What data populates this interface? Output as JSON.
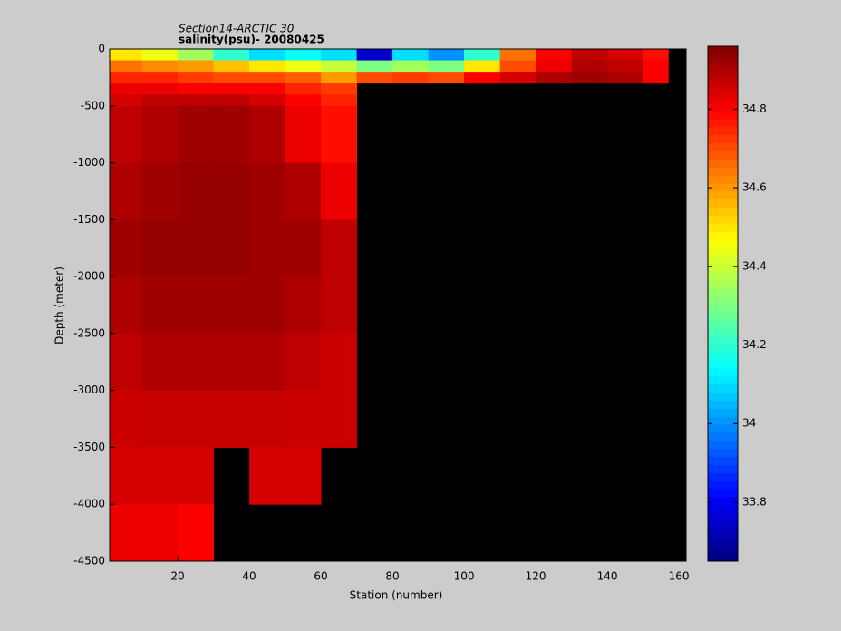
{
  "chart_data": {
    "type": "heatmap",
    "title": "Section14-ARCTIC 30",
    "subtitle": "salinity(psu)- 20080425",
    "x_label": "Station (number)",
    "y_label": "Depth (meter)",
    "xlim": [
      1,
      162
    ],
    "ylim": [
      -4500,
      0
    ],
    "xticks": [
      20,
      40,
      60,
      80,
      100,
      120,
      140,
      160
    ],
    "yticks": [
      -4500,
      -4000,
      -3500,
      -3000,
      -2500,
      -2000,
      -1500,
      -1000,
      -500,
      0
    ],
    "xbins": [
      1,
      10,
      20,
      30,
      40,
      50,
      60,
      70,
      80,
      90,
      100,
      110,
      120,
      130,
      140,
      150,
      157
    ],
    "ybins": [
      0,
      -100,
      -200,
      -300,
      -400,
      -500,
      -1000,
      -1500,
      -2000,
      -2500,
      -3000,
      -3500,
      -4000,
      -4500
    ],
    "values": [
      [
        34.5,
        34.45,
        34.35,
        34.2,
        34.1,
        34.15,
        34.1,
        33.75,
        34.1,
        34.0,
        34.2,
        34.65,
        34.8,
        34.88,
        34.85,
        34.78
      ],
      [
        34.65,
        34.62,
        34.6,
        34.55,
        34.5,
        34.45,
        34.4,
        34.3,
        34.35,
        34.3,
        34.5,
        34.7,
        34.82,
        34.9,
        34.88,
        34.8
      ],
      [
        34.75,
        34.75,
        34.72,
        34.7,
        34.7,
        34.68,
        34.6,
        34.7,
        34.72,
        34.7,
        34.8,
        34.85,
        34.9,
        34.92,
        34.9,
        34.8
      ],
      [
        34.82,
        34.82,
        34.8,
        34.8,
        34.8,
        34.75,
        34.72,
        null,
        null,
        null,
        null,
        null,
        null,
        null,
        null,
        null
      ],
      [
        34.85,
        34.88,
        34.88,
        34.88,
        34.85,
        34.8,
        34.75,
        null,
        null,
        null,
        null,
        null,
        null,
        null,
        null,
        null
      ],
      [
        34.88,
        34.9,
        34.92,
        34.92,
        34.9,
        34.82,
        34.78,
        null,
        null,
        null,
        null,
        null,
        null,
        null,
        null,
        null
      ],
      [
        34.9,
        34.92,
        34.93,
        34.93,
        34.92,
        34.9,
        34.82,
        null,
        null,
        null,
        null,
        null,
        null,
        null,
        null,
        null
      ],
      [
        34.92,
        34.93,
        34.93,
        34.93,
        34.92,
        34.92,
        34.88,
        null,
        null,
        null,
        null,
        null,
        null,
        null,
        null,
        null
      ],
      [
        34.9,
        34.92,
        34.92,
        34.92,
        34.92,
        34.9,
        34.88,
        null,
        null,
        null,
        null,
        null,
        null,
        null,
        null,
        null
      ],
      [
        34.88,
        34.9,
        34.9,
        34.9,
        34.9,
        34.88,
        34.86,
        null,
        null,
        null,
        null,
        null,
        null,
        null,
        null,
        null
      ],
      [
        34.86,
        34.87,
        34.87,
        34.87,
        34.87,
        34.86,
        34.86,
        null,
        null,
        null,
        null,
        null,
        null,
        null,
        null,
        null
      ],
      [
        34.85,
        34.85,
        34.85,
        null,
        34.85,
        34.85,
        null,
        null,
        null,
        null,
        null,
        null,
        null,
        null,
        null,
        null
      ],
      [
        34.82,
        34.82,
        34.8,
        null,
        null,
        null,
        null,
        null,
        null,
        null,
        null,
        null,
        null,
        null,
        null,
        null
      ]
    ],
    "colormap": "jet",
    "clim": [
      33.65,
      34.96
    ],
    "cticks": [
      33.8,
      34,
      34.2,
      34.4,
      34.6,
      34.8
    ]
  }
}
